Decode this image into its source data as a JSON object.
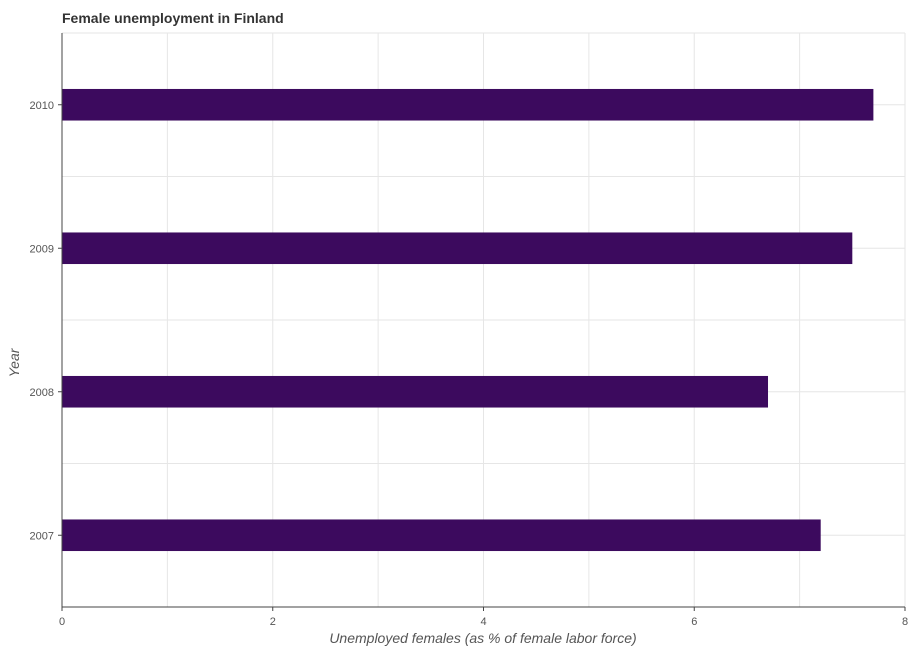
{
  "chart_data": {
    "type": "bar",
    "orientation": "horizontal",
    "title": "Female unemployment in Finland",
    "xlabel": "Unemployed females (as % of female labor force)",
    "ylabel": "Year",
    "categories": [
      "2007",
      "2008",
      "2009",
      "2010"
    ],
    "values": [
      7.2,
      6.7,
      7.5,
      7.7
    ],
    "xlim": [
      0,
      8
    ],
    "xticks": [
      0,
      2,
      4,
      6,
      8
    ],
    "grid": true,
    "bar_color": "#3c0a5e"
  }
}
